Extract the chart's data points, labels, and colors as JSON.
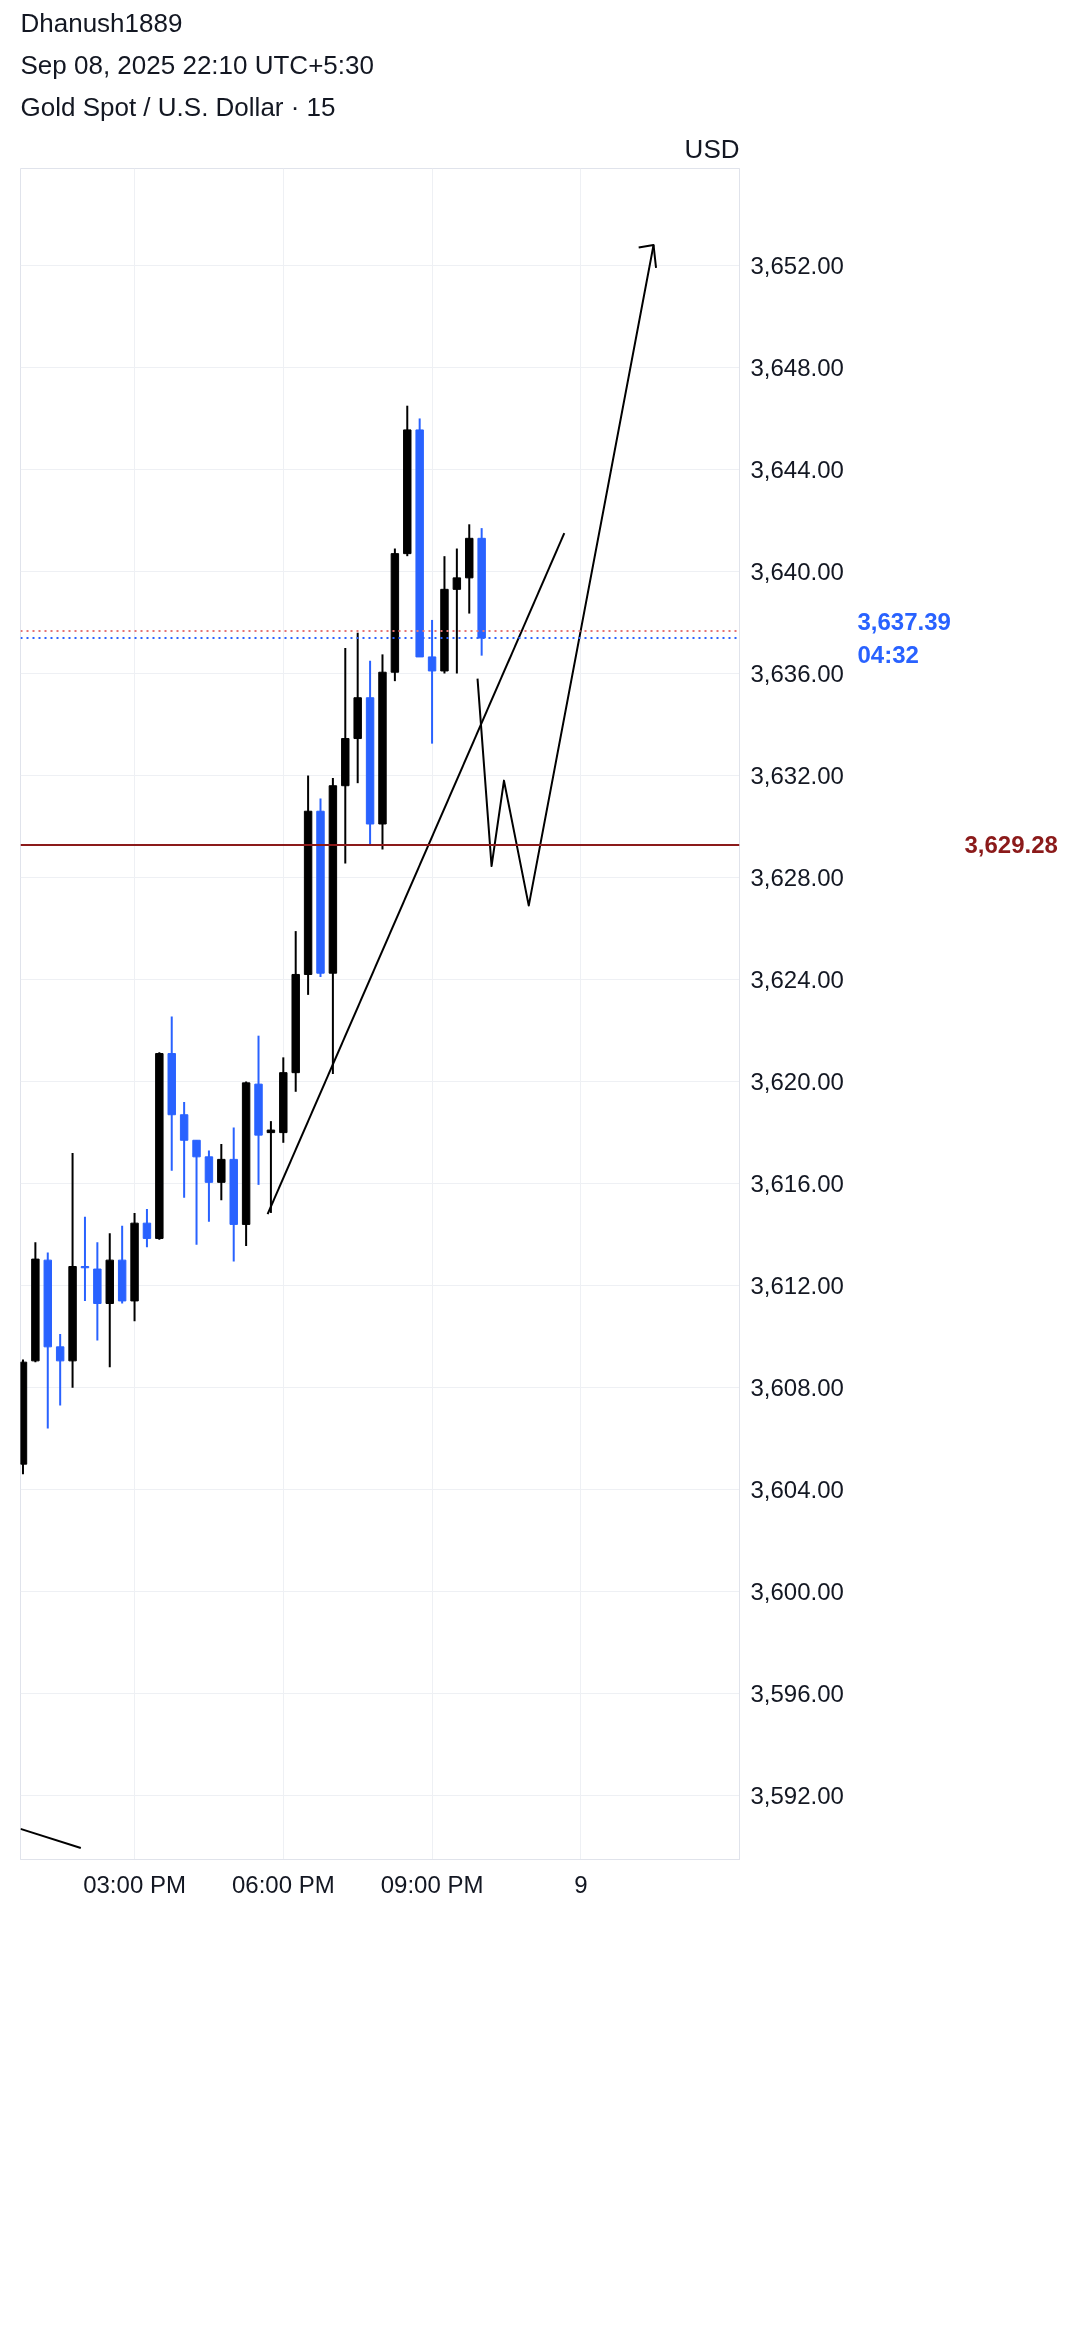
{
  "chart_data": {
    "type": "candlestick",
    "title": "Gold Spot / U.S. Dollar · 15",
    "subtitle": "Sep 08, 2025 22:10 UTC+5:30",
    "ylabel": "USD",
    "annotations": [
      "Dhanush1889"
    ],
    "x": [
      "2025-09-08T12:45",
      "2025-09-08T13:00",
      "2025-09-08T13:15",
      "2025-09-08T13:30",
      "2025-09-08T13:45",
      "2025-09-08T14:00",
      "2025-09-08T14:15",
      "2025-09-08T14:30",
      "2025-09-08T14:45",
      "2025-09-08T15:00",
      "2025-09-08T15:15",
      "2025-09-08T15:30",
      "2025-09-08T15:45",
      "2025-09-08T16:00",
      "2025-09-08T16:15",
      "2025-09-08T16:30",
      "2025-09-08T16:45",
      "2025-09-08T17:00",
      "2025-09-08T17:15",
      "2025-09-08T17:30",
      "2025-09-08T17:45",
      "2025-09-08T18:00",
      "2025-09-08T18:15",
      "2025-09-08T18:30",
      "2025-09-08T18:45",
      "2025-09-08T19:00",
      "2025-09-08T19:15",
      "2025-09-08T19:30",
      "2025-09-08T19:45",
      "2025-09-08T20:00",
      "2025-09-08T20:15",
      "2025-09-08T20:30",
      "2025-09-08T20:45",
      "2025-09-08T21:00",
      "2025-09-08T21:15",
      "2025-09-08T21:30",
      "2025-09-08T21:45",
      "2025-09-08T22:00"
    ],
    "ohlc": [
      [
        3605.0,
        3609.1,
        3604.6,
        3609.0
      ],
      [
        3609.05,
        3613.7,
        3609.0,
        3613.04
      ],
      [
        3613.0,
        3613.3,
        3606.4,
        3609.6
      ],
      [
        3609.6,
        3610.1,
        3607.3,
        3609.05
      ],
      [
        3609.05,
        3617.2,
        3608.0,
        3612.75
      ],
      [
        3612.75,
        3614.7,
        3611.4,
        3612.7
      ],
      [
        3612.65,
        3613.7,
        3609.85,
        3611.3
      ],
      [
        3611.3,
        3614.05,
        3608.8,
        3613.0
      ],
      [
        3613.0,
        3614.35,
        3611.3,
        3611.4
      ],
      [
        3611.4,
        3614.85,
        3610.6,
        3614.45
      ],
      [
        3614.45,
        3615.0,
        3613.5,
        3613.85
      ],
      [
        3613.85,
        3621.15,
        3613.8,
        3621.1
      ],
      [
        3621.1,
        3622.55,
        3616.5,
        3618.7
      ],
      [
        3618.7,
        3619.2,
        3615.45,
        3617.7
      ],
      [
        3617.7,
        3617.7,
        3613.6,
        3617.05
      ],
      [
        3617.05,
        3617.3,
        3614.5,
        3616.05
      ],
      [
        3616.05,
        3617.55,
        3615.35,
        3616.95
      ],
      [
        3616.95,
        3618.2,
        3612.95,
        3614.4
      ],
      [
        3614.4,
        3620.0,
        3613.55,
        3619.95
      ],
      [
        3619.9,
        3621.8,
        3615.95,
        3617.9
      ],
      [
        3618.0,
        3618.45,
        3614.85,
        3618.1
      ],
      [
        3618.0,
        3620.95,
        3617.6,
        3620.35
      ],
      [
        3620.35,
        3625.9,
        3619.6,
        3624.2
      ],
      [
        3624.2,
        3632.0,
        3623.4,
        3630.6
      ],
      [
        3630.6,
        3631.1,
        3624.1,
        3624.25
      ],
      [
        3624.25,
        3631.9,
        3620.3,
        3631.6
      ],
      [
        3631.6,
        3637.0,
        3628.55,
        3633.45
      ],
      [
        3633.45,
        3637.6,
        3631.7,
        3635.05
      ],
      [
        3635.05,
        3636.5,
        3629.25,
        3630.1
      ],
      [
        3630.1,
        3636.75,
        3629.1,
        3636.05
      ],
      [
        3636.05,
        3640.9,
        3635.7,
        3640.7
      ],
      [
        3640.7,
        3646.5,
        3640.6,
        3645.55
      ],
      [
        3645.55,
        3646.0,
        3636.65,
        3636.65
      ],
      [
        3636.65,
        3638.1,
        3633.25,
        3636.1
      ],
      [
        3636.1,
        3640.6,
        3636.0,
        3639.3
      ],
      [
        3639.3,
        3640.9,
        3636.0,
        3639.75
      ],
      [
        3639.75,
        3641.85,
        3638.35,
        3641.3
      ],
      [
        3641.3,
        3641.7,
        3636.7,
        3637.39
      ]
    ],
    "colors": [
      "#000000",
      "#000000",
      "#2962ff",
      "#2962ff",
      "#000000",
      "#2962ff",
      "#2962ff",
      "#000000",
      "#2962ff",
      "#000000",
      "#2962ff",
      "#000000",
      "#2962ff",
      "#2962ff",
      "#2962ff",
      "#2962ff",
      "#000000",
      "#2962ff",
      "#000000",
      "#2962ff",
      "#000000",
      "#000000",
      "#000000",
      "#000000",
      "#2962ff",
      "#000000",
      "#000000",
      "#000000",
      "#2962ff",
      "#000000",
      "#000000",
      "#000000",
      "#2962ff",
      "#2962ff",
      "#000000",
      "#000000",
      "#000000",
      "#2962ff"
    ],
    "series": [
      {
        "type": "line",
        "color": "#000000",
        "x": [
          "2025-09-08T17:41",
          "2025-09-08T23:40"
        ],
        "values": [
          3614.8,
          3641.5
        ]
      },
      {
        "type": "line",
        "color": "#000000",
        "x": [
          "2025-09-08T21:55",
          "2025-09-08T22:12",
          "2025-09-08T22:27",
          "2025-09-08T22:57",
          "2025-09-09T01:28"
        ],
        "values": [
          3635.8,
          3628.45,
          3631.8,
          3626.9,
          3652.8
        ]
      },
      {
        "type": "line",
        "color": "#000000",
        "x": [
          "2025-09-08T12:42",
          "2025-09-08T13:55"
        ],
        "values": [
          3590.7,
          3589.95
        ]
      },
      {
        "type": "line",
        "color": "#000000",
        "x": [
          "2025-09-09T01:10",
          "2025-09-09T01:28",
          "2025-09-09T01:31"
        ],
        "values": [
          3652.7,
          3652.8,
          3651.9
        ]
      }
    ],
    "ref_lines": [
      {
        "axis": "y",
        "value": 3637.67,
        "color": "#e57373",
        "line_style": "dotted"
      },
      {
        "axis": "y",
        "value": 3637.39,
        "label": "3,637.39\n04:32",
        "color": "#2962ff",
        "line_style": "dotted"
      },
      {
        "axis": "y",
        "value": 3629.28,
        "label": "3,629.28",
        "color": "#8b1a1a",
        "line_style": "solid"
      }
    ],
    "xlim": [
      "2025-09-08T12:42",
      "2025-09-09T03:12"
    ],
    "ylim": [
      3589.5,
      3655.8
    ],
    "xticks": [
      {
        "value": "2025-09-08T15:00",
        "label": "03:00 PM"
      },
      {
        "value": "2025-09-08T18:00",
        "label": "06:00 PM"
      },
      {
        "value": "2025-09-08T21:00",
        "label": "09:00 PM"
      },
      {
        "value": "2025-09-09",
        "label": "9"
      }
    ],
    "yticks": [
      {
        "value": 3592,
        "label": "3,592.00"
      },
      {
        "value": 3596,
        "label": "3,596.00"
      },
      {
        "value": 3600,
        "label": "3,600.00"
      },
      {
        "value": 3604,
        "label": "3,604.00"
      },
      {
        "value": 3608,
        "label": "3,608.00"
      },
      {
        "value": 3612,
        "label": "3,612.00"
      },
      {
        "value": 3616,
        "label": "3,616.00"
      },
      {
        "value": 3620,
        "label": "3,620.00"
      },
      {
        "value": 3624,
        "label": "3,624.00"
      },
      {
        "value": 3628,
        "label": "3,628.00"
      },
      {
        "value": 3632,
        "label": "3,632.00"
      },
      {
        "value": 3636,
        "label": "3,636.00"
      },
      {
        "value": 3640,
        "label": "3,640.00"
      },
      {
        "value": 3644,
        "label": "3,644.00"
      },
      {
        "value": 3648,
        "label": "3,648.00"
      },
      {
        "value": 3652,
        "label": "3,652.00"
      }
    ],
    "grid": true
  }
}
